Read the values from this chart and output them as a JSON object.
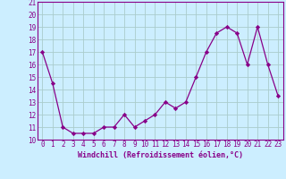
{
  "x": [
    0,
    1,
    2,
    3,
    4,
    5,
    6,
    7,
    8,
    9,
    10,
    11,
    12,
    13,
    14,
    15,
    16,
    17,
    18,
    19,
    20,
    21,
    22,
    23
  ],
  "y": [
    17,
    14.5,
    11,
    10.5,
    10.5,
    10.5,
    11,
    11,
    12,
    11,
    11.5,
    12,
    13,
    12.5,
    13,
    15,
    17,
    18.5,
    19,
    18.5,
    16,
    19,
    16,
    13.5
  ],
  "line_color": "#880088",
  "marker": "D",
  "marker_size": 2.2,
  "bg_color": "#cceeff",
  "grid_color": "#aacccc",
  "xlabel": "Windchill (Refroidissement éolien,°C)",
  "ylim": [
    10,
    21
  ],
  "xlim": [
    -0.5,
    23.5
  ],
  "yticks": [
    10,
    11,
    12,
    13,
    14,
    15,
    16,
    17,
    18,
    19,
    20,
    21
  ],
  "xticks": [
    0,
    1,
    2,
    3,
    4,
    5,
    6,
    7,
    8,
    9,
    10,
    11,
    12,
    13,
    14,
    15,
    16,
    17,
    18,
    19,
    20,
    21,
    22,
    23
  ],
  "label_fontsize": 6.0,
  "tick_fontsize": 5.5
}
